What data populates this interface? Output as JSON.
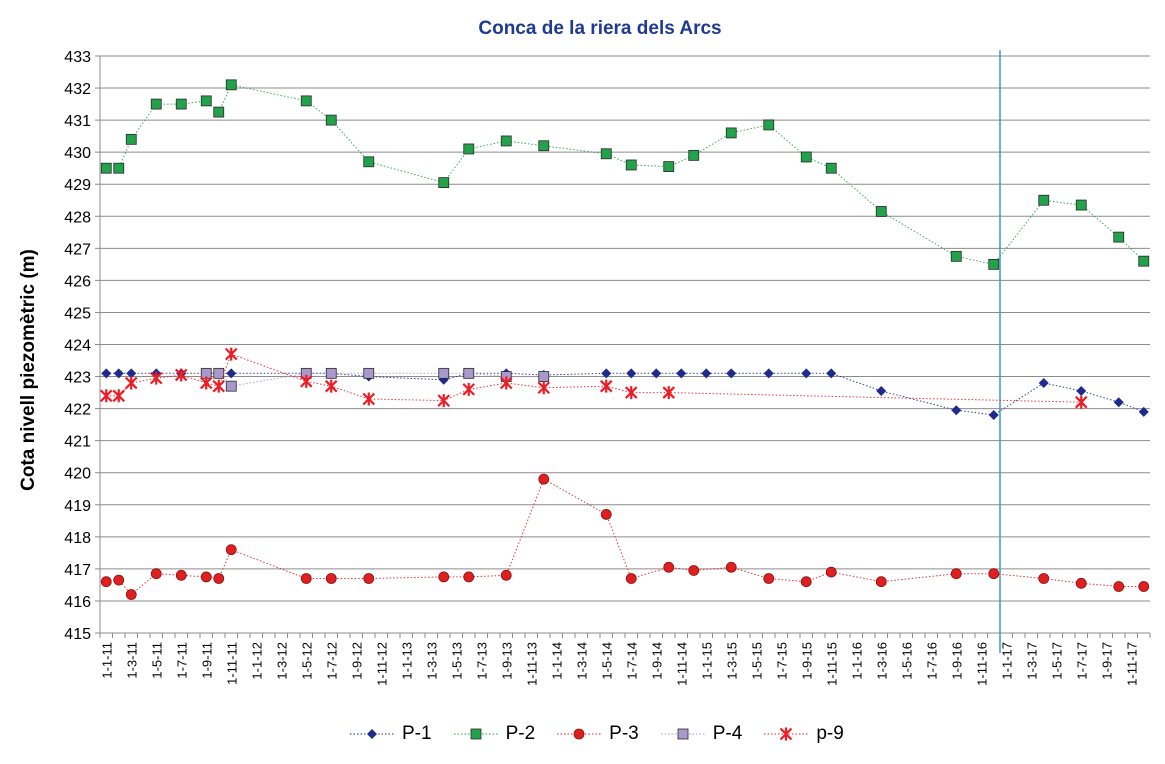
{
  "chart_data": {
    "type": "line",
    "title": "Conca de la riera dels Arcs",
    "xlabel": "",
    "ylabel": "Cota nivell piezomètric (m)",
    "ylim": [
      415,
      433
    ],
    "yticks": [
      415,
      416,
      417,
      418,
      419,
      420,
      421,
      422,
      423,
      424,
      425,
      426,
      427,
      428,
      429,
      430,
      431,
      432,
      433
    ],
    "grid": "horizontal",
    "legend_position": "bottom",
    "x_start": "2011-01",
    "x_end": "2017-12",
    "x_tick_labels": [
      "1-1-11",
      "1-3-11",
      "1-5-11",
      "1-7-11",
      "1-9-11",
      "1-11-11",
      "1-1-12",
      "1-3-12",
      "1-5-12",
      "1-7-12",
      "1-9-12",
      "1-11-12",
      "1-1-13",
      "1-3-13",
      "1-5-13",
      "1-7-13",
      "1-9-13",
      "1-11-13",
      "1-1-14",
      "1-3-14",
      "1-5-14",
      "1-7-14",
      "1-9-14",
      "1-11-14",
      "1-1-15",
      "1-3-15",
      "1-5-15",
      "1-7-15",
      "1-9-15",
      "1-11-15",
      "1-1-16",
      "1-3-16",
      "1-5-16",
      "1-7-16",
      "1-9-16",
      "1-11-16",
      "1-1-17",
      "1-3-17",
      "1-5-17",
      "1-7-17",
      "1-9-17",
      "1-11-17"
    ],
    "vertical_marker": "2016-12",
    "series": [
      {
        "name": "P-1",
        "marker": "diamond",
        "color": "#1f2a8f",
        "points": [
          [
            "2011-01",
            423.1
          ],
          [
            "2011-02",
            423.1
          ],
          [
            "2011-03",
            423.1
          ],
          [
            "2011-05",
            423.1
          ],
          [
            "2011-07",
            423.1
          ],
          [
            "2011-09",
            423.1
          ],
          [
            "2011-10",
            423.1
          ],
          [
            "2011-11",
            423.1
          ],
          [
            "2012-05",
            423.1
          ],
          [
            "2012-07",
            423.1
          ],
          [
            "2012-10",
            423.0
          ],
          [
            "2013-04",
            422.9
          ],
          [
            "2013-06",
            423.1
          ],
          [
            "2013-09",
            423.1
          ],
          [
            "2013-12",
            423.05
          ],
          [
            "2014-05",
            423.1
          ],
          [
            "2014-07",
            423.1
          ],
          [
            "2014-09",
            423.1
          ],
          [
            "2014-11",
            423.1
          ],
          [
            "2015-01",
            423.1
          ],
          [
            "2015-03",
            423.1
          ],
          [
            "2015-06",
            423.1
          ],
          [
            "2015-09",
            423.1
          ],
          [
            "2015-11",
            423.1
          ],
          [
            "2016-03",
            422.55
          ],
          [
            "2016-09",
            421.95
          ],
          [
            "2016-12",
            421.8
          ],
          [
            "2017-04",
            422.8
          ],
          [
            "2017-07",
            422.55
          ],
          [
            "2017-10",
            422.2
          ],
          [
            "2017-12",
            421.9
          ]
        ]
      },
      {
        "name": "P-2",
        "marker": "square",
        "color": "#22a24a",
        "points": [
          [
            "2011-01",
            429.5
          ],
          [
            "2011-02",
            429.5
          ],
          [
            "2011-03",
            430.4
          ],
          [
            "2011-05",
            431.5
          ],
          [
            "2011-07",
            431.5
          ],
          [
            "2011-09",
            431.6
          ],
          [
            "2011-10",
            431.25
          ],
          [
            "2011-11",
            432.1
          ],
          [
            "2012-05",
            431.6
          ],
          [
            "2012-07",
            431.0
          ],
          [
            "2012-10",
            429.7
          ],
          [
            "2013-04",
            429.05
          ],
          [
            "2013-06",
            430.1
          ],
          [
            "2013-09",
            430.35
          ],
          [
            "2013-12",
            430.2
          ],
          [
            "2014-05",
            429.95
          ],
          [
            "2014-07",
            429.6
          ],
          [
            "2014-10",
            429.55
          ],
          [
            "2014-12",
            429.9
          ],
          [
            "2015-03",
            430.6
          ],
          [
            "2015-06",
            430.85
          ],
          [
            "2015-09",
            429.85
          ],
          [
            "2015-11",
            429.5
          ],
          [
            "2016-03",
            428.15
          ],
          [
            "2016-09",
            426.75
          ],
          [
            "2016-12",
            426.5
          ],
          [
            "2017-04",
            428.5
          ],
          [
            "2017-07",
            428.35
          ],
          [
            "2017-10",
            427.35
          ],
          [
            "2017-12",
            426.6
          ]
        ]
      },
      {
        "name": "P-3",
        "marker": "circle",
        "color": "#e02020",
        "points": [
          [
            "2011-01",
            416.6
          ],
          [
            "2011-02",
            416.65
          ],
          [
            "2011-03",
            416.2
          ],
          [
            "2011-05",
            416.85
          ],
          [
            "2011-07",
            416.8
          ],
          [
            "2011-09",
            416.75
          ],
          [
            "2011-10",
            416.7
          ],
          [
            "2011-11",
            417.6
          ],
          [
            "2012-05",
            416.7
          ],
          [
            "2012-07",
            416.7
          ],
          [
            "2012-10",
            416.7
          ],
          [
            "2013-04",
            416.75
          ],
          [
            "2013-06",
            416.75
          ],
          [
            "2013-09",
            416.8
          ],
          [
            "2013-12",
            419.8
          ],
          [
            "2014-05",
            418.7
          ],
          [
            "2014-07",
            416.7
          ],
          [
            "2014-10",
            417.05
          ],
          [
            "2014-12",
            416.95
          ],
          [
            "2015-03",
            417.05
          ],
          [
            "2015-06",
            416.7
          ],
          [
            "2015-09",
            416.6
          ],
          [
            "2015-11",
            416.9
          ],
          [
            "2016-03",
            416.6
          ],
          [
            "2016-09",
            416.85
          ],
          [
            "2016-12",
            416.85
          ],
          [
            "2017-04",
            416.7
          ],
          [
            "2017-07",
            416.55
          ],
          [
            "2017-10",
            416.45
          ],
          [
            "2017-12",
            416.45
          ]
        ]
      },
      {
        "name": "P-4",
        "marker": "square",
        "color": "#a898cc",
        "points": [
          [
            "2011-09",
            423.1
          ],
          [
            "2011-10",
            423.1
          ],
          [
            "2011-11",
            422.7
          ],
          [
            "2012-05",
            423.1
          ],
          [
            "2012-07",
            423.1
          ],
          [
            "2012-10",
            423.1
          ],
          [
            "2013-04",
            423.1
          ],
          [
            "2013-06",
            423.1
          ],
          [
            "2013-09",
            423.0
          ],
          [
            "2013-12",
            423.0
          ]
        ]
      },
      {
        "name": "p-9",
        "marker": "star",
        "color": "#ee1c24",
        "points": [
          [
            "2011-01",
            422.4
          ],
          [
            "2011-02",
            422.4
          ],
          [
            "2011-03",
            422.8
          ],
          [
            "2011-05",
            422.95
          ],
          [
            "2011-07",
            423.05
          ],
          [
            "2011-09",
            422.8
          ],
          [
            "2011-10",
            422.7
          ],
          [
            "2011-11",
            423.7
          ],
          [
            "2012-05",
            422.85
          ],
          [
            "2012-07",
            422.7
          ],
          [
            "2012-10",
            422.3
          ],
          [
            "2013-04",
            422.25
          ],
          [
            "2013-06",
            422.6
          ],
          [
            "2013-09",
            422.8
          ],
          [
            "2013-12",
            422.65
          ],
          [
            "2014-05",
            422.7
          ],
          [
            "2014-07",
            422.5
          ],
          [
            "2014-10",
            422.5
          ],
          [
            "2017-07",
            422.2
          ]
        ]
      }
    ]
  }
}
